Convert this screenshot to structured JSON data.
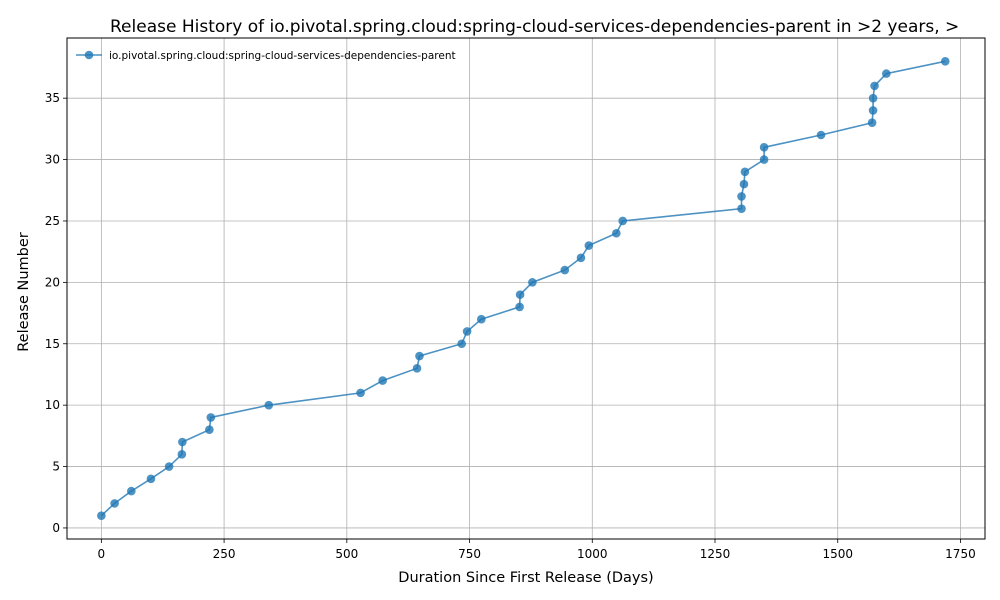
{
  "chart_data": {
    "type": "line",
    "title": "Release History of io.pivotal.spring.cloud:spring-cloud-services-dependencies-parent in >2 years, >",
    "xlabel": "Duration Since First Release (Days)",
    "ylabel": "Release Number",
    "xlim": [
      -70,
      1800
    ],
    "ylim": [
      -0.9,
      39.9
    ],
    "xticks": [
      0,
      250,
      500,
      750,
      1000,
      1250,
      1500,
      1750
    ],
    "yticks": [
      0,
      5,
      10,
      15,
      20,
      25,
      30,
      35
    ],
    "grid": true,
    "legend_position": "top-left",
    "color": "#1f77b4",
    "series": [
      {
        "name": "io.pivotal.spring.cloud:spring-cloud-services-dependencies-parent",
        "marker": "circle",
        "x": [
          0,
          27,
          61,
          101,
          138,
          164,
          165,
          220,
          223,
          341,
          528,
          573,
          643,
          648,
          734,
          745,
          774,
          852,
          853,
          878,
          944,
          977,
          993,
          1049,
          1062,
          1304,
          1304,
          1309,
          1311,
          1350,
          1350,
          1466,
          1570,
          1572,
          1572,
          1575,
          1599,
          1719
        ],
        "y": [
          1,
          2,
          3,
          4,
          5,
          6,
          7,
          8,
          9,
          10,
          11,
          12,
          13,
          14,
          15,
          16,
          17,
          18,
          19,
          20,
          21,
          22,
          23,
          24,
          25,
          26,
          27,
          28,
          29,
          30,
          31,
          32,
          33,
          34,
          35,
          36,
          37,
          38
        ]
      }
    ]
  }
}
